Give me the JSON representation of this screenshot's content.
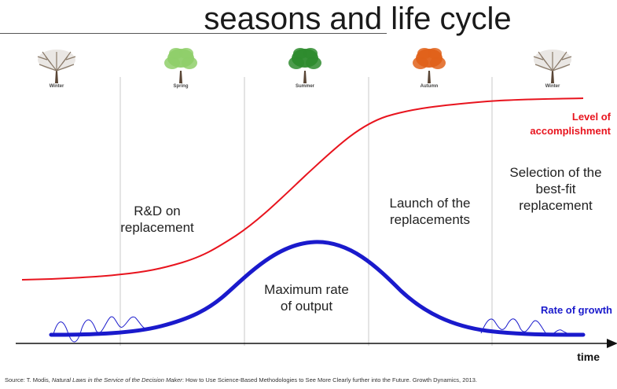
{
  "title": "seasons and life cycle",
  "seasons": [
    {
      "label": "Winter",
      "icon": "bare-tree-icon",
      "color": "#8a7a6a"
    },
    {
      "label": "Spring",
      "icon": "spring-tree-icon",
      "color": "#8fcf6a"
    },
    {
      "label": "Summer",
      "icon": "summer-tree-icon",
      "color": "#2e8b2e"
    },
    {
      "label": "Autumn",
      "icon": "autumn-tree-icon",
      "color": "#e0611a"
    },
    {
      "label": "Winter",
      "icon": "bare-tree-icon",
      "color": "#8a7a6a"
    }
  ],
  "notes": {
    "rd": "R&D on\nreplacement",
    "max_rate": "Maximum rate\nof output",
    "launch": "Launch of the\nreplacements",
    "selection": "Selection of the\nbest-fit\nreplacement"
  },
  "curves": {
    "level": {
      "label": "Level of\naccomplishment",
      "color": "#e8141e"
    },
    "growth": {
      "label": "Rate of growth",
      "color": "#1a1acc"
    }
  },
  "axis": {
    "x_label": "time"
  },
  "source": {
    "prefix": "Source: T. Modis, ",
    "book": "Natural Laws in the Service of the Decision Maker",
    "suffix": ": How to Use Science-Based Methodologies to See More Clearly further into the Future. Growth Dynamics, 2013."
  }
}
